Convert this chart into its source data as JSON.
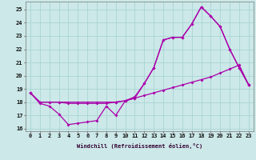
{
  "xlabel": "Windchill (Refroidissement éolien,°C)",
  "bg_color": "#cce8e8",
  "grid_color": "#aad4d4",
  "line_color": "#aa00aa",
  "xlim_min": -0.5,
  "xlim_max": 23.5,
  "ylim_min": 15.8,
  "ylim_max": 25.6,
  "yticks": [
    16,
    17,
    18,
    19,
    20,
    21,
    22,
    23,
    24,
    25
  ],
  "xticks": [
    0,
    1,
    2,
    3,
    4,
    5,
    6,
    7,
    8,
    9,
    10,
    11,
    12,
    13,
    14,
    15,
    16,
    17,
    18,
    19,
    20,
    21,
    22,
    23
  ],
  "line1_x": [
    0,
    1,
    2,
    3,
    4,
    5,
    6,
    7,
    8,
    9,
    10,
    11,
    12,
    13,
    14,
    15,
    16,
    17,
    18,
    19,
    20,
    21,
    22,
    23
  ],
  "line1_y": [
    18.7,
    17.9,
    17.7,
    17.1,
    16.3,
    16.4,
    16.5,
    16.6,
    17.7,
    17.0,
    18.1,
    18.3,
    19.4,
    20.6,
    22.7,
    22.9,
    22.9,
    23.9,
    25.2,
    24.5,
    23.7,
    22.0,
    20.6,
    19.3
  ],
  "line2_x": [
    0,
    1,
    2,
    3,
    4,
    5,
    6,
    7,
    8,
    9,
    10,
    11,
    12,
    13,
    14,
    15,
    16,
    17,
    18,
    19,
    20,
    21,
    22,
    23
  ],
  "line2_y": [
    18.7,
    18.0,
    18.0,
    18.0,
    17.9,
    17.9,
    17.9,
    17.9,
    17.9,
    18.0,
    18.1,
    18.3,
    18.5,
    18.7,
    18.9,
    19.1,
    19.3,
    19.5,
    19.7,
    19.9,
    20.2,
    20.5,
    20.8,
    19.3
  ],
  "line3_x": [
    0,
    1,
    2,
    3,
    9,
    10,
    11,
    12,
    13,
    14,
    15,
    16,
    17,
    18,
    19,
    20,
    21,
    22,
    23
  ],
  "line3_y": [
    18.7,
    18.0,
    18.0,
    18.0,
    18.0,
    18.1,
    18.4,
    19.4,
    20.6,
    22.7,
    22.9,
    22.9,
    23.9,
    25.2,
    24.5,
    23.7,
    22.0,
    20.6,
    19.3
  ],
  "marker_size": 2.0,
  "line_width": 0.9,
  "xlabel_fontsize": 5.0,
  "tick_fontsize": 5.0
}
